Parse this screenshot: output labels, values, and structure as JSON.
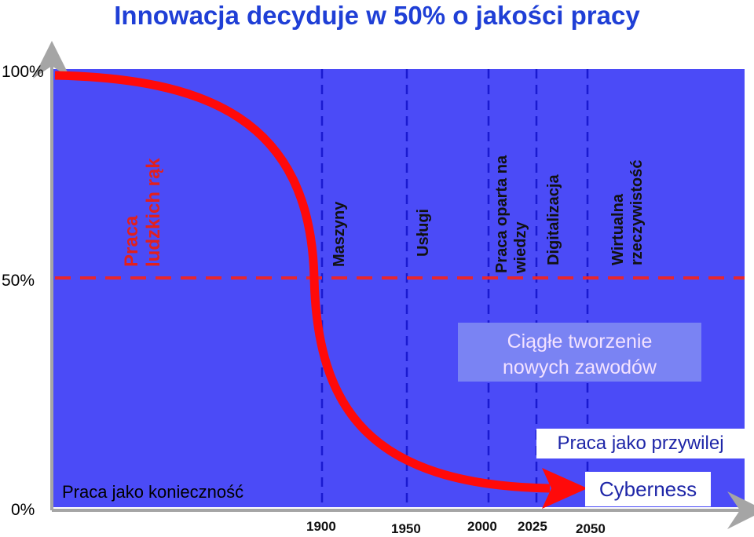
{
  "title": "Innowacja decyduje w 50% o jakości pracy",
  "y_axis": {
    "top": "100%",
    "mid": "50%",
    "bottom": "0%"
  },
  "eras": {
    "praca_ludzkich_rak": {
      "line1": "Praca",
      "line2": "ludzkich rąk"
    },
    "maszyny": "Maszyny",
    "uslugi": "Usługi",
    "praca_oparta": {
      "line1": "Praca oparta na",
      "line2": "wiedzy"
    },
    "digitalizacja": "Digitalizacja",
    "wirtualna": {
      "line1": "Wirtualna",
      "line2": "rzeczywistość"
    }
  },
  "boxes": {
    "ciagle": {
      "line1": "Ciągłe tworzenie",
      "line2": "nowych zawodów"
    },
    "przywilej": "Praca jako przywilej",
    "cyberness": "Cyberness",
    "koniecznosc": "Praca jako konieczność"
  },
  "years": [
    "1900",
    "1950",
    "2000",
    "2025",
    "2050"
  ],
  "colors": {
    "background": "#4b4bf7",
    "curve": "#ff0a0a",
    "dashed_50": "#e8262e",
    "era_lines": "#1a1ad0",
    "title": "#1f3fd6"
  }
}
